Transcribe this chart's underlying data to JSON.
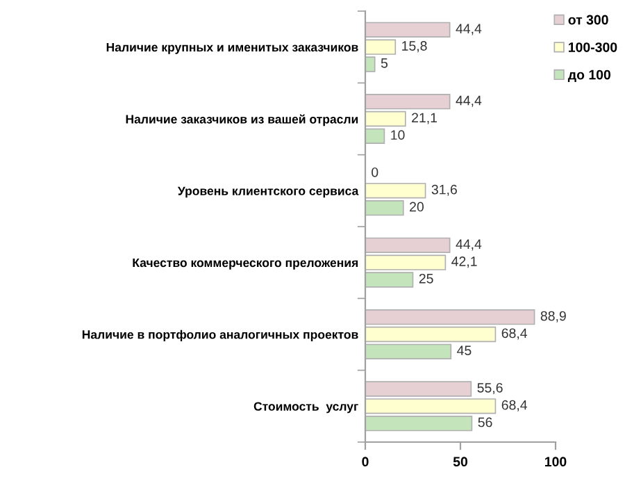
{
  "chart_data": {
    "type": "bar",
    "orientation": "horizontal",
    "categories": [
      "Наличие крупных и именитых заказчиков",
      "Наличие заказчиков из вашей отрасли",
      "Уровень клиентского сервиса",
      "Качество коммерческого преложения",
      "Наличие в портфолио аналогичных проектов",
      "Стоимость  услуг"
    ],
    "series": [
      {
        "name": "от 300",
        "color": "#e6d0d4",
        "values": [
          44.4,
          44.4,
          0,
          44.4,
          88.9,
          55.6
        ],
        "value_labels": [
          "44,4",
          "44,4",
          "0",
          "44,4",
          "88,9",
          "55,6"
        ]
      },
      {
        "name": "100-300",
        "color": "#ffffd0",
        "values": [
          15.8,
          21.1,
          31.6,
          42.1,
          68.4,
          68.4
        ],
        "value_labels": [
          "15,8",
          "21,1",
          "31,6",
          "42,1",
          "68,4",
          "68,4"
        ]
      },
      {
        "name": "до 100",
        "color": "#c4e4bc",
        "values": [
          5,
          10,
          20,
          25,
          45,
          56
        ],
        "value_labels": [
          "5",
          "10",
          "20",
          "25",
          "45",
          "56"
        ]
      }
    ],
    "xlim": [
      0,
      100
    ],
    "xticks": [
      0,
      50,
      100
    ],
    "grid": false,
    "legend": "top right"
  }
}
